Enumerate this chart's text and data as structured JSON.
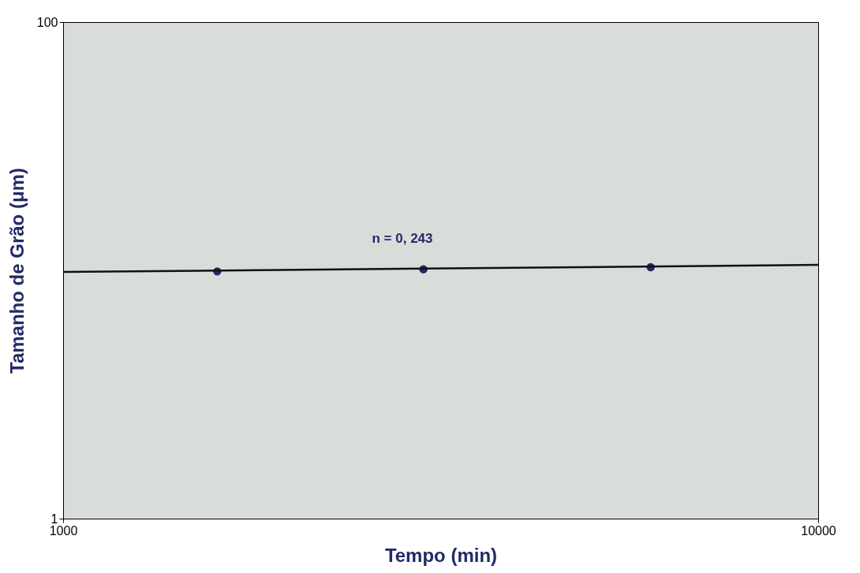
{
  "chart_data": {
    "type": "scatter",
    "xlabel": "Tempo (min)",
    "ylabel": "Tamanho de Grão (μm)",
    "log": "xy",
    "xlim": [
      1000,
      10000
    ],
    "ylim": [
      1,
      100
    ],
    "xticks": [
      1000,
      10000
    ],
    "yticks": [
      1,
      100
    ],
    "grid": false,
    "marker": "circle",
    "series": [
      {
        "color": "#232a66",
        "x": [
          1600,
          3000,
          6000
        ],
        "values": [
          9.9,
          10.1,
          10.3
        ]
      },
      {
        "type": "line",
        "color": "#111111",
        "x": [
          1000,
          10000
        ],
        "values": [
          9.85,
          10.52
        ],
        "marker": "none",
        "line_style": "solid"
      }
    ],
    "annotations": [
      "n = 0, 243"
    ]
  }
}
